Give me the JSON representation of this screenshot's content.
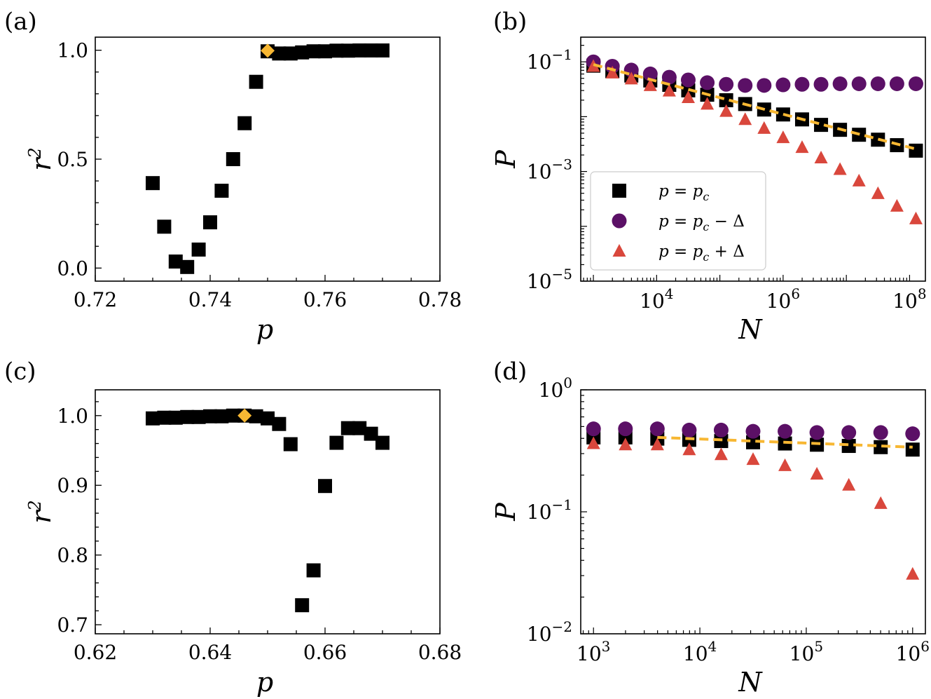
{
  "colors": {
    "black": "#000000",
    "purple": "#5b1066",
    "red": "#d9473c",
    "gold": "#f7b733"
  },
  "panels": {
    "a": {
      "label": "(a)",
      "xlabel": "p",
      "ylabel": "r",
      "ylabel_sup": "2",
      "xlim": [
        0.72,
        0.78
      ],
      "ylim": [
        -0.06,
        1.06
      ],
      "xticks": [
        {
          "v": 0.72,
          "label": "0.72"
        },
        {
          "v": 0.74,
          "label": "0.74"
        },
        {
          "v": 0.76,
          "label": "0.76"
        },
        {
          "v": 0.78,
          "label": "0.78"
        }
      ],
      "yticks": [
        {
          "v": 0.0,
          "label": "0.0"
        },
        {
          "v": 0.5,
          "label": "0.5"
        },
        {
          "v": 1.0,
          "label": "1.0"
        }
      ],
      "chart_data": {
        "type": "scatter",
        "series": [
          {
            "name": "r^2",
            "marker": "square",
            "color": "#000000",
            "x": [
              0.73,
              0.732,
              0.734,
              0.736,
              0.738,
              0.74,
              0.742,
              0.744,
              0.746,
              0.748,
              0.75,
              0.752,
              0.754,
              0.756,
              0.758,
              0.76,
              0.762,
              0.764,
              0.766,
              0.768,
              0.77
            ],
            "y": [
              0.39,
              0.19,
              0.03,
              0.005,
              0.085,
              0.21,
              0.355,
              0.5,
              0.665,
              0.855,
              0.995,
              0.985,
              0.985,
              0.99,
              0.995,
              0.995,
              0.998,
              0.998,
              0.999,
              0.999,
              0.999
            ]
          },
          {
            "name": "p_c",
            "marker": "diamond",
            "color": "#f7b733",
            "x": [
              0.75
            ],
            "y": [
              0.998
            ]
          }
        ]
      }
    },
    "b": {
      "label": "(b)",
      "xlabel": "N",
      "ylabel": "P",
      "xlim_log": [
        2.8,
        8.25
      ],
      "ylim_log": [
        -5,
        -0.55
      ],
      "xticks": [
        {
          "v": 4,
          "base": "10",
          "exp": "4"
        },
        {
          "v": 6,
          "base": "10",
          "exp": "6"
        },
        {
          "v": 8,
          "base": "10",
          "exp": "8"
        }
      ],
      "yticks": [
        {
          "v": -1,
          "base": "10",
          "exp": "−1"
        },
        {
          "v": -3,
          "base": "10",
          "exp": "−3"
        },
        {
          "v": -5,
          "base": "10",
          "exp": "−5"
        }
      ],
      "legend": {
        "position": "lower-left",
        "entries": [
          {
            "marker": "square",
            "color": "#000000",
            "lhs": "p",
            "eq": " = ",
            "rhs": "p",
            "sub": "c",
            "tail": ""
          },
          {
            "marker": "circle",
            "color": "#5b1066",
            "lhs": "p",
            "eq": " = ",
            "rhs": "p",
            "sub": "c",
            "tail": " − Δ"
          },
          {
            "marker": "triangle",
            "color": "#d9473c",
            "lhs": "p",
            "eq": " = ",
            "rhs": "p",
            "sub": "c",
            "tail": " + Δ"
          }
        ]
      },
      "chart_data": {
        "type": "scatter",
        "x_scale": "log",
        "y_scale": "log",
        "series": [
          {
            "name": "p = p_c",
            "marker": "square",
            "color": "#000000",
            "log10_x": [
              3.0,
              3.3,
              3.6,
              3.9,
              4.2,
              4.5,
              4.8,
              5.1,
              5.4,
              5.7,
              6.0,
              6.3,
              6.6,
              6.9,
              7.2,
              7.5,
              7.8,
              8.1
            ],
            "log10_y": [
              -1.07,
              -1.17,
              -1.25,
              -1.34,
              -1.42,
              -1.52,
              -1.6,
              -1.7,
              -1.77,
              -1.87,
              -1.96,
              -2.05,
              -2.15,
              -2.24,
              -2.33,
              -2.42,
              -2.52,
              -2.62
            ]
          },
          {
            "name": "p = p_c − Δ",
            "marker": "circle",
            "color": "#5b1066",
            "log10_x": [
              3.0,
              3.3,
              3.6,
              3.9,
              4.2,
              4.5,
              4.8,
              5.1,
              5.4,
              5.7,
              6.0,
              6.3,
              6.6,
              6.9,
              7.2,
              7.5,
              7.8,
              8.1
            ],
            "log10_y": [
              -1.0,
              -1.08,
              -1.15,
              -1.22,
              -1.28,
              -1.33,
              -1.38,
              -1.41,
              -1.43,
              -1.43,
              -1.42,
              -1.41,
              -1.41,
              -1.4,
              -1.4,
              -1.4,
              -1.4,
              -1.4
            ]
          },
          {
            "name": "p = p_c + Δ",
            "marker": "triangle",
            "color": "#d9473c",
            "log10_x": [
              3.0,
              3.3,
              3.6,
              3.9,
              4.2,
              4.5,
              4.8,
              5.1,
              5.4,
              5.7,
              6.0,
              6.3,
              6.6,
              6.9,
              7.2,
              7.5,
              7.8,
              8.1
            ],
            "log10_y": [
              -1.08,
              -1.2,
              -1.31,
              -1.43,
              -1.53,
              -1.65,
              -1.77,
              -1.9,
              -2.05,
              -2.21,
              -2.38,
              -2.56,
              -2.75,
              -2.96,
              -3.17,
              -3.4,
              -3.63,
              -3.86
            ]
          },
          {
            "name": "fit",
            "style": "dashed-line",
            "color": "#f7b733",
            "log10_x": [
              3.0,
              8.1
            ],
            "log10_y": [
              -1.05,
              -2.59
            ]
          }
        ]
      }
    },
    "c": {
      "label": "(c)",
      "xlabel": "p",
      "ylabel": "r",
      "ylabel_sup": "2",
      "xlim": [
        0.62,
        0.68
      ],
      "ylim": [
        0.687,
        1.037
      ],
      "xticks": [
        {
          "v": 0.62,
          "label": "0.62"
        },
        {
          "v": 0.64,
          "label": "0.64"
        },
        {
          "v": 0.66,
          "label": "0.66"
        },
        {
          "v": 0.68,
          "label": "0.68"
        }
      ],
      "yticks": [
        {
          "v": 0.7,
          "label": "0.7"
        },
        {
          "v": 0.8,
          "label": "0.8"
        },
        {
          "v": 0.9,
          "label": "0.9"
        },
        {
          "v": 1.0,
          "label": "1.0"
        }
      ],
      "chart_data": {
        "type": "scatter",
        "series": [
          {
            "name": "r^2",
            "marker": "square",
            "color": "#000000",
            "x": [
              0.63,
              0.632,
              0.634,
              0.636,
              0.638,
              0.64,
              0.642,
              0.644,
              0.646,
              0.648,
              0.65,
              0.652,
              0.654,
              0.656,
              0.658,
              0.66,
              0.662,
              0.664,
              0.666,
              0.668,
              0.67
            ],
            "y": [
              0.996,
              0.997,
              0.997,
              0.998,
              0.998,
              0.999,
              0.999,
              1.0,
              1.0,
              0.999,
              0.996,
              0.988,
              0.959,
              0.728,
              0.778,
              0.899,
              0.961,
              0.982,
              0.982,
              0.974,
              0.961
            ]
          },
          {
            "name": "p_c",
            "marker": "diamond",
            "color": "#f7b733",
            "x": [
              0.646
            ],
            "y": [
              1.0
            ]
          }
        ]
      }
    },
    "d": {
      "label": "(d)",
      "xlabel": "N",
      "ylabel": "P",
      "xlim_log": [
        2.88,
        6.12
      ],
      "ylim_log": [
        -2,
        0
      ],
      "xticks": [
        {
          "v": 3,
          "base": "10",
          "exp": "3"
        },
        {
          "v": 4,
          "base": "10",
          "exp": "4"
        },
        {
          "v": 5,
          "base": "10",
          "exp": "5"
        },
        {
          "v": 6,
          "base": "10",
          "exp": "6"
        }
      ],
      "yticks": [
        {
          "v": 0,
          "base": "10",
          "exp": "0"
        },
        {
          "v": -1,
          "base": "10",
          "exp": "−1"
        },
        {
          "v": -2,
          "base": "10",
          "exp": "−2"
        }
      ],
      "chart_data": {
        "type": "scatter",
        "x_scale": "log",
        "y_scale": "log",
        "series": [
          {
            "name": "p = p_c",
            "marker": "square",
            "color": "#000000",
            "log10_x": [
              3.0,
              3.3,
              3.6,
              3.9,
              4.2,
              4.5,
              4.8,
              5.1,
              5.4,
              5.7,
              6.0
            ],
            "log10_y": [
              -0.39,
              -0.39,
              -0.4,
              -0.41,
              -0.42,
              -0.43,
              -0.44,
              -0.45,
              -0.46,
              -0.47,
              -0.49
            ]
          },
          {
            "name": "p = p_c − Δ",
            "marker": "circle",
            "color": "#5b1066",
            "log10_x": [
              3.0,
              3.3,
              3.6,
              3.9,
              4.2,
              4.5,
              4.8,
              5.1,
              5.4,
              5.7,
              6.0
            ],
            "log10_y": [
              -0.32,
              -0.32,
              -0.32,
              -0.33,
              -0.33,
              -0.34,
              -0.34,
              -0.35,
              -0.35,
              -0.35,
              -0.36
            ]
          },
          {
            "name": "p = p_c + Δ",
            "marker": "triangle",
            "color": "#d9473c",
            "log10_x": [
              3.0,
              3.3,
              3.6,
              3.9,
              4.2,
              4.5,
              4.8,
              5.1,
              5.4,
              5.7,
              6.0
            ],
            "log10_y": [
              -0.44,
              -0.45,
              -0.45,
              -0.49,
              -0.53,
              -0.57,
              -0.62,
              -0.69,
              -0.78,
              -0.93,
              -1.51
            ]
          },
          {
            "name": "fit",
            "style": "dashed-line",
            "color": "#f7b733",
            "log10_x": [
              3.6,
              6.0
            ],
            "log10_y": [
              -0.39,
              -0.47
            ]
          }
        ]
      }
    }
  }
}
